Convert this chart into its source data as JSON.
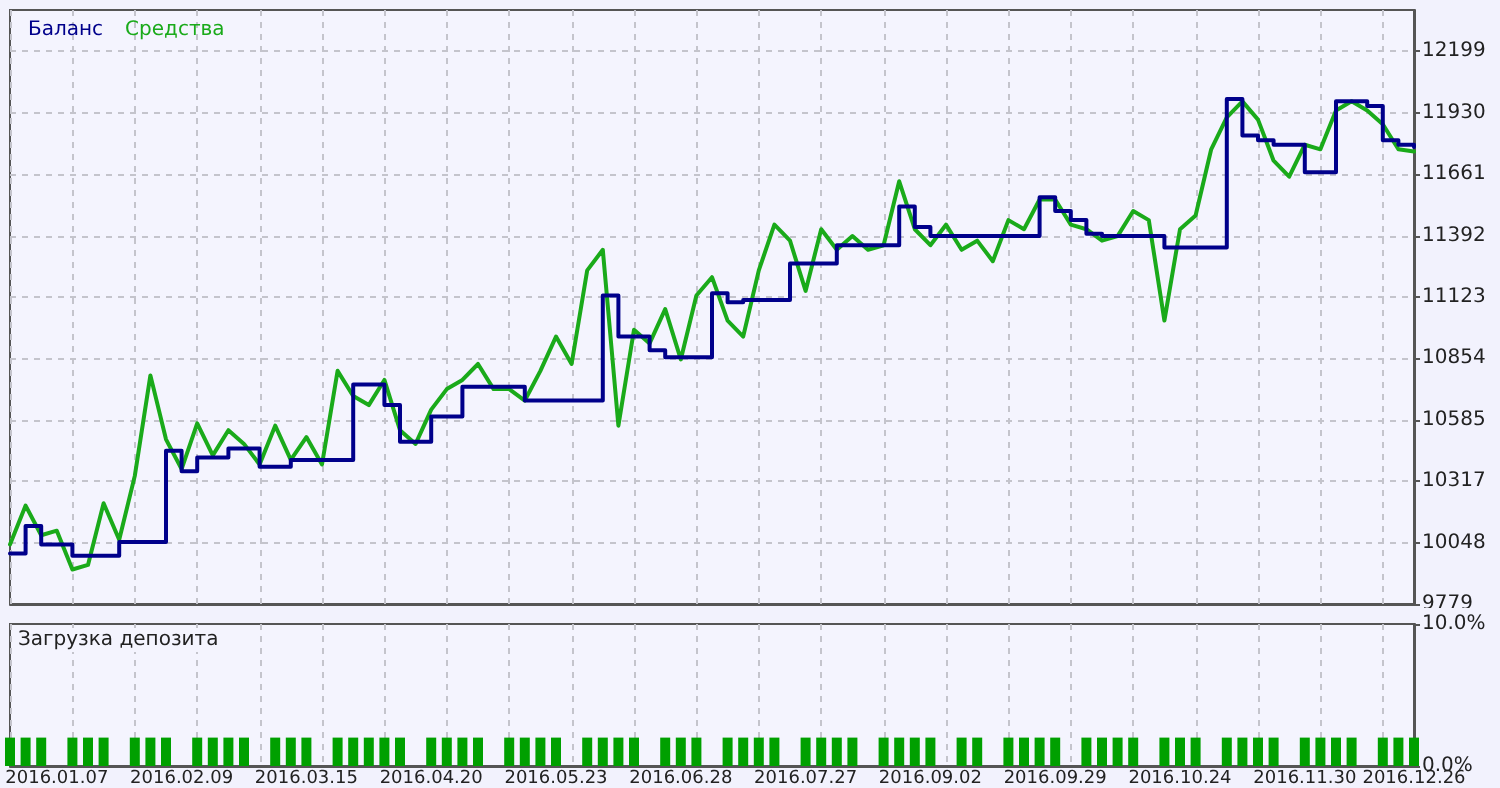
{
  "chart_data": [
    {
      "type": "line",
      "legend": "top left",
      "grid": true,
      "tick_labels": "y",
      "marker": "none",
      "line_style": "solid",
      "categories": [
        null,
        null,
        null,
        "2016.01.07",
        null,
        null,
        null,
        null,
        null,
        null,
        null,
        "2016.02.09",
        null,
        null,
        null,
        null,
        null,
        null,
        null,
        "2016.03.15",
        null,
        null,
        null,
        null,
        null,
        null,
        null,
        "2016.04.20",
        null,
        null,
        null,
        null,
        null,
        null,
        null,
        "2016.05.23",
        null,
        null,
        null,
        null,
        null,
        null,
        null,
        "2016.06.28",
        null,
        null,
        null,
        null,
        null,
        null,
        null,
        "2016.07.27",
        null,
        null,
        null,
        null,
        null,
        null,
        null,
        "2016.09.02",
        null,
        null,
        null,
        null,
        null,
        null,
        null,
        "2016.09.29",
        null,
        null,
        null,
        null,
        null,
        null,
        null,
        "2016.10.24",
        null,
        null,
        null,
        null,
        null,
        null,
        null,
        "2016.11.30",
        null,
        null,
        null,
        null,
        null,
        null,
        "2016.12.26"
      ],
      "ylim": [
        9779,
        12380
      ],
      "yticks": [
        9779,
        10048,
        10317,
        10585,
        10854,
        11123,
        11392,
        11661,
        11930,
        12199
      ],
      "series": [
        {
          "name": "Баланс",
          "type": "step",
          "color": "#00008b",
          "values": [
            10000,
            10120,
            10040,
            10040,
            9990,
            9990,
            9990,
            10050,
            10050,
            10050,
            10450,
            10360,
            10420,
            10420,
            10460,
            10460,
            10380,
            10380,
            10410,
            10410,
            10410,
            10410,
            10740,
            10740,
            10650,
            10490,
            10490,
            10600,
            10600,
            10730,
            10730,
            10730,
            10730,
            10670,
            10670,
            10670,
            10670,
            10670,
            11130,
            10950,
            10950,
            10890,
            10860,
            10860,
            10860,
            11140,
            11100,
            11110,
            11110,
            11110,
            11270,
            11270,
            11270,
            11350,
            11350,
            11350,
            11350,
            11520,
            11430,
            11390,
            11390,
            11390,
            11390,
            11390,
            11390,
            11390,
            11560,
            11500,
            11460,
            11400,
            11390,
            11390,
            11390,
            11390,
            11340,
            11340,
            11340,
            11340,
            11990,
            11830,
            11810,
            11790,
            11790,
            11670,
            11670,
            11980,
            11980,
            11960,
            11810,
            11790,
            11780
          ]
        },
        {
          "name": "Средства",
          "type": "line",
          "color": "#1aaa1a",
          "values": [
            10040,
            10210,
            10080,
            10100,
            9930,
            9950,
            10220,
            10060,
            10340,
            10780,
            10500,
            10370,
            10570,
            10430,
            10540,
            10480,
            10390,
            10560,
            10410,
            10510,
            10390,
            10800,
            10690,
            10650,
            10760,
            10540,
            10480,
            10630,
            10720,
            10760,
            10830,
            10720,
            10720,
            10670,
            10800,
            10950,
            10830,
            11240,
            11330,
            10560,
            10980,
            10920,
            11070,
            10850,
            11130,
            11210,
            11020,
            10950,
            11240,
            11440,
            11370,
            11150,
            11420,
            11330,
            11390,
            11330,
            11350,
            11630,
            11420,
            11350,
            11440,
            11330,
            11370,
            11280,
            11460,
            11420,
            11550,
            11550,
            11440,
            11420,
            11370,
            11390,
            11500,
            11460,
            11020,
            11420,
            11480,
            11770,
            11910,
            11980,
            11900,
            11720,
            11650,
            11790,
            11770,
            11940,
            11980,
            11940,
            11880,
            11770,
            11760
          ]
        }
      ]
    },
    {
      "type": "bar",
      "title": "Загрузка депозита",
      "grid": "x",
      "color": "#00a000",
      "categories": [
        null,
        null,
        null,
        "2016.01.07",
        null,
        null,
        null,
        null,
        null,
        null,
        null,
        "2016.02.09",
        null,
        null,
        null,
        null,
        null,
        null,
        null,
        "2016.03.15",
        null,
        null,
        null,
        null,
        null,
        null,
        null,
        "2016.04.20",
        null,
        null,
        null,
        null,
        null,
        null,
        null,
        "2016.05.23",
        null,
        null,
        null,
        null,
        null,
        null,
        null,
        "2016.06.28",
        null,
        null,
        null,
        null,
        null,
        null,
        null,
        "2016.07.27",
        null,
        null,
        null,
        null,
        null,
        null,
        null,
        "2016.09.02",
        null,
        null,
        null,
        null,
        null,
        null,
        null,
        "2016.09.29",
        null,
        null,
        null,
        null,
        null,
        null,
        null,
        "2016.10.24",
        null,
        null,
        null,
        null,
        null,
        null,
        null,
        "2016.11.30",
        null,
        null,
        null,
        null,
        null,
        null,
        "2016.12.26"
      ],
      "ylim": [
        0,
        10
      ],
      "yticks": [
        {
          "value": 0,
          "label": "0.0%"
        },
        {
          "value": 10,
          "label": "10.0%"
        }
      ],
      "values": [
        2,
        2,
        2,
        null,
        2,
        2,
        2,
        null,
        2,
        2,
        2,
        null,
        2,
        2,
        2,
        2,
        null,
        2,
        2,
        2,
        null,
        2,
        2,
        2,
        2,
        2,
        null,
        2,
        2,
        2,
        2,
        null,
        2,
        2,
        2,
        2,
        null,
        2,
        2,
        2,
        2,
        null,
        2,
        2,
        2,
        null,
        2,
        2,
        2,
        2,
        null,
        2,
        2,
        2,
        2,
        null,
        2,
        2,
        2,
        2,
        null,
        2,
        2,
        null,
        2,
        2,
        2,
        2,
        null,
        2,
        2,
        2,
        2,
        null,
        2,
        2,
        2,
        null,
        2,
        2,
        2,
        2,
        null,
        2,
        2,
        2,
        2,
        null,
        2,
        2,
        2
      ]
    }
  ]
}
